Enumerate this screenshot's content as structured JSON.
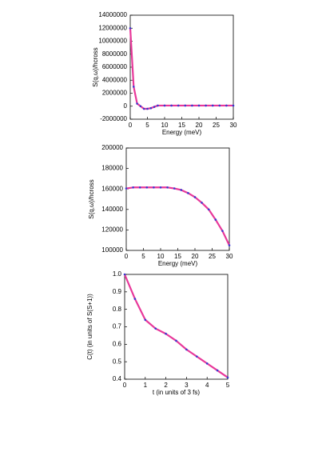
{
  "chart_data": [
    {
      "type": "line",
      "x_label": "Energy (meV)",
      "y_label": "S(q,ω)/hcross",
      "x": [
        0,
        1,
        2,
        3,
        4,
        5,
        6,
        7,
        8,
        10,
        12,
        14,
        16,
        18,
        20,
        22,
        24,
        26,
        28,
        30
      ],
      "values": [
        12000000,
        3000000,
        400000,
        0,
        -400000,
        -400000,
        -300000,
        -100000,
        100000,
        100000,
        100000,
        100000,
        100000,
        100000,
        100000,
        100000,
        100000,
        100000,
        100000,
        100000
      ],
      "color": "#e8389a",
      "marker_color": "#3a3ad0",
      "xlim": [
        0,
        30
      ],
      "xticks": [
        0,
        5,
        10,
        15,
        20,
        25,
        30
      ],
      "ylim": [
        -2000000,
        14000000
      ],
      "yticks": [
        -2000000,
        0,
        2000000,
        4000000,
        6000000,
        8000000,
        10000000,
        12000000,
        14000000
      ]
    },
    {
      "type": "line",
      "x_label": "Energy (meV)",
      "y_label": "S(q,ω)/hcross",
      "x": [
        0,
        2,
        4,
        6,
        8,
        10,
        12,
        14,
        16,
        18,
        20,
        22,
        24,
        26,
        28,
        30
      ],
      "values": [
        160500,
        161500,
        161500,
        161500,
        161500,
        161500,
        161500,
        160500,
        159000,
        156000,
        152000,
        146500,
        140000,
        130000,
        119000,
        105000
      ],
      "color": "#e8389a",
      "marker_color": "#3a3ad0",
      "xlim": [
        0,
        30
      ],
      "xticks": [
        0,
        5,
        10,
        15,
        20,
        25,
        30
      ],
      "ylim": [
        100000,
        200000
      ],
      "yticks": [
        100000,
        120000,
        140000,
        160000,
        180000,
        200000
      ]
    },
    {
      "type": "line",
      "x_label": "t (in units of 3 fs)",
      "y_label": "C(t) (in units of S(S+1))",
      "x": [
        0,
        0.5,
        1,
        1.5,
        2,
        2.5,
        3,
        3.5,
        4,
        4.5,
        5
      ],
      "values": [
        1.0,
        0.86,
        0.74,
        0.69,
        0.66,
        0.62,
        0.57,
        0.53,
        0.49,
        0.45,
        0.41
      ],
      "color": "#e8389a",
      "marker_color": "#3a3ad0",
      "xlim": [
        0,
        5
      ],
      "xticks": [
        0,
        1,
        2,
        3,
        4,
        5
      ],
      "ylim": [
        0.4,
        1.0
      ],
      "yticks": [
        0.4,
        0.5,
        0.6,
        0.7,
        0.8,
        0.9,
        {
          "value": 1.0,
          "label": "1.0"
        }
      ]
    }
  ]
}
